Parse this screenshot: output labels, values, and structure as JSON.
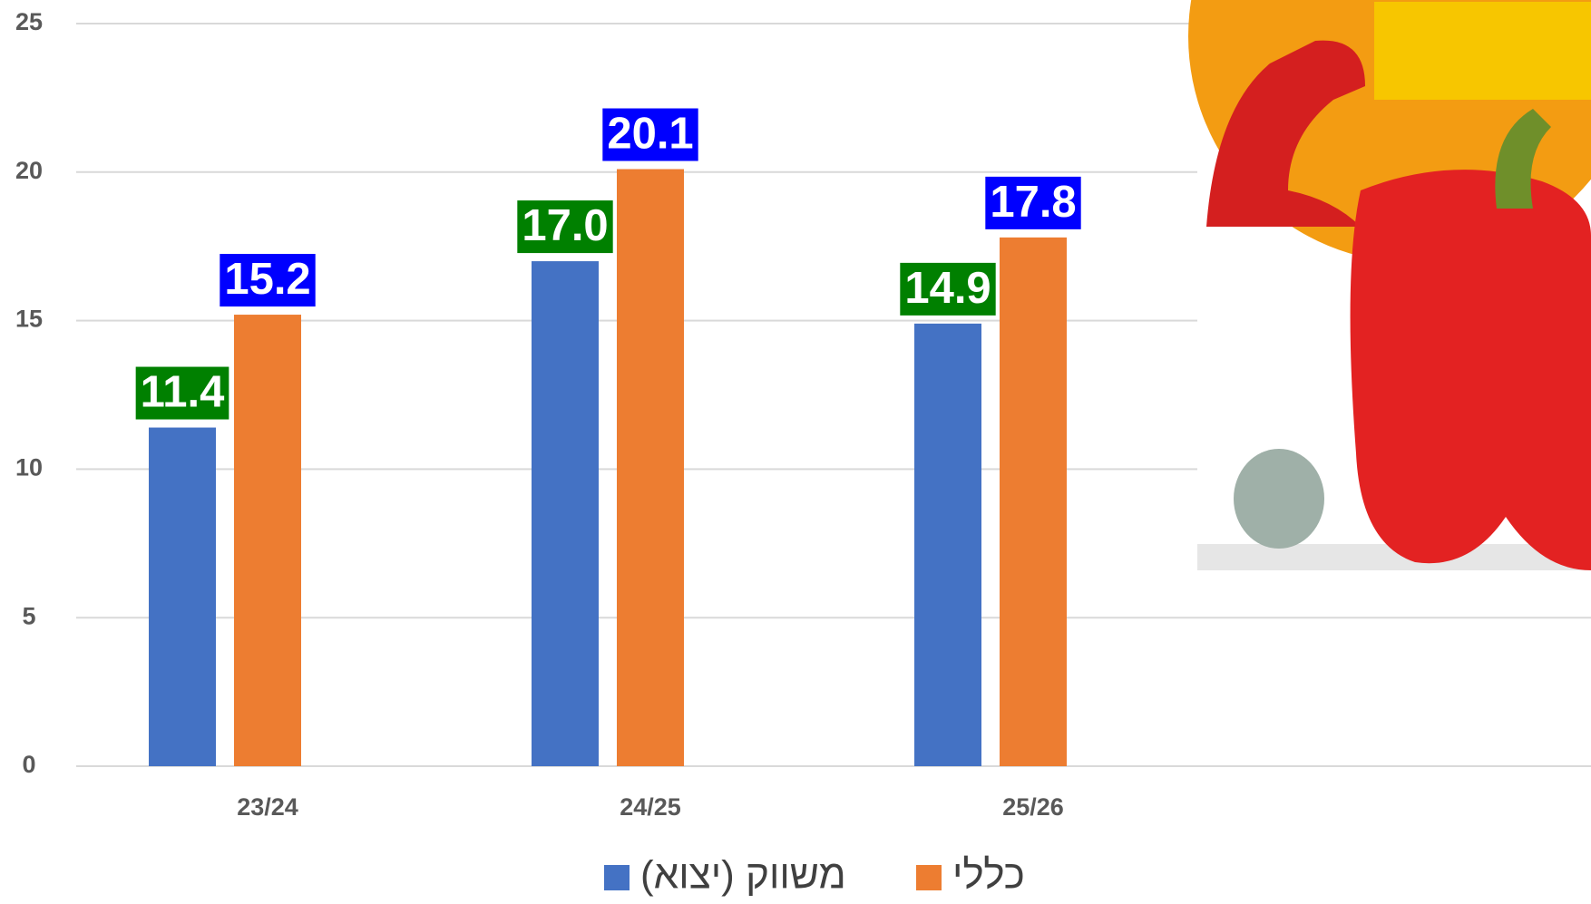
{
  "chart_data": {
    "type": "bar",
    "categories": [
      "23/24",
      "24/25",
      "25/26"
    ],
    "series": [
      {
        "name": "משווק (יצוא)",
        "color": "#4472c4",
        "label_color": "#008000",
        "values": [
          11.4,
          17,
          14.9
        ],
        "value_labels": [
          "11.4",
          "17.0",
          "14.9"
        ]
      },
      {
        "name": "כללי",
        "color": "#ed7d31",
        "label_color": "#0000ff",
        "values": [
          15.2,
          20.1,
          17.8
        ],
        "value_labels": [
          "15.2",
          "20.1",
          "17.8"
        ]
      }
    ],
    "ylim": [
      0,
      25
    ],
    "yticks": [
      0,
      5,
      10,
      15,
      20,
      25
    ],
    "grid": true
  }
}
